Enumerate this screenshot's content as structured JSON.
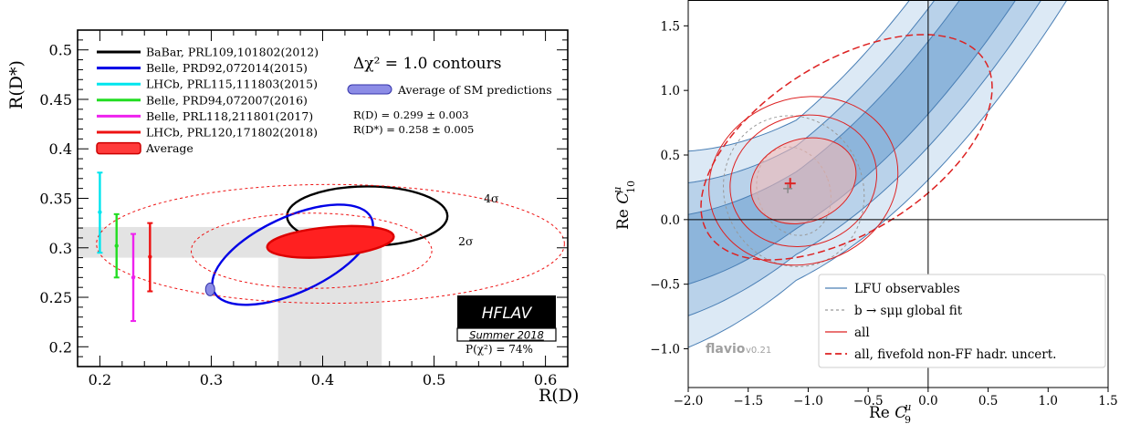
{
  "chart_data": [
    {
      "type": "scatter",
      "xlabel": "R(D)",
      "ylabel": "R(D*)",
      "xlim": [
        0.18,
        0.62
      ],
      "ylim": [
        0.18,
        0.52
      ],
      "xticks": [
        "0.2",
        "0.3",
        "0.4",
        "0.5",
        "0.6"
      ],
      "xtick_values": [
        0.2,
        0.3,
        0.4,
        0.5,
        0.6
      ],
      "yticks": [
        "0.2",
        "0.25",
        "0.3",
        "0.35",
        "0.4",
        "0.45",
        "0.5"
      ],
      "ytick_values": [
        0.2,
        0.25,
        0.3,
        0.35,
        0.4,
        0.45,
        0.5
      ],
      "legend": [
        {
          "label": "BaBar, PRL109,101802(2012)",
          "color": "#000000"
        },
        {
          "label": "Belle, PRD92,072014(2015)",
          "color": "#0000e6"
        },
        {
          "label": "LHCb, PRL115,111803(2015)",
          "color": "#00e5ee"
        },
        {
          "label": "Belle, PRD94,072007(2016)",
          "color": "#22dd22"
        },
        {
          "label": "Belle, PRL118,211801(2017)",
          "color": "#ee22ee"
        },
        {
          "label": "LHCb, PRL120,171802(2018)",
          "color": "#ee1111"
        },
        {
          "label": "Average",
          "color": "#ff3b3b"
        }
      ],
      "contour_label": "Δχ² = 1.0 contours",
      "sm_label": "Average of SM predictions",
      "sm_rd_text": "R(D) = 0.299 ± 0.003",
      "sm_rdstar_text": "R(D*) = 0.258 ± 0.005",
      "sigma_labels": [
        "4σ",
        "2σ"
      ],
      "ellipses": [
        {
          "name": "BaBar",
          "cx": 0.44,
          "cy": 0.332,
          "rx": 0.072,
          "ry": 0.03,
          "angle": 0,
          "color": "#000000"
        },
        {
          "name": "Belle 2015",
          "cx": 0.373,
          "cy": 0.293,
          "rx": 0.078,
          "ry": 0.038,
          "angle": -25,
          "color": "#0000e6"
        },
        {
          "name": "Average",
          "cx": 0.407,
          "cy": 0.306,
          "rx": 0.057,
          "ry": 0.015,
          "angle": -5,
          "color": "#ff2020",
          "filled": true
        },
        {
          "name": "2σ",
          "cx": 0.39,
          "cy": 0.297,
          "rx": 0.108,
          "ry": 0.038,
          "angle": 0,
          "color": "#ee1111",
          "dashed": true
        },
        {
          "name": "4σ",
          "cx": 0.407,
          "cy": 0.304,
          "rx": 0.21,
          "ry": 0.06,
          "angle": 0,
          "color": "#ee1111",
          "dashed": true
        }
      ],
      "error_bars": [
        {
          "name": "LHCb 2015",
          "x": 0.2,
          "y": 0.336,
          "lo": 0.295,
          "hi": 0.376,
          "color": "#00e5ee"
        },
        {
          "name": "Belle 2016",
          "x": 0.215,
          "y": 0.302,
          "lo": 0.27,
          "hi": 0.334,
          "color": "#22dd22"
        },
        {
          "name": "Belle 2017",
          "x": 0.23,
          "y": 0.27,
          "lo": 0.226,
          "hi": 0.314,
          "color": "#ee22ee"
        },
        {
          "name": "LHCb 2018",
          "x": 0.245,
          "y": 0.291,
          "lo": 0.256,
          "hi": 0.325,
          "color": "#ee1111"
        }
      ],
      "sm_point": {
        "x": 0.299,
        "y": 0.258
      },
      "bands": [
        {
          "axis": "y",
          "lo": 0.29,
          "hi": 0.321,
          "from": 0.18,
          "to": 0.453
        },
        {
          "axis": "x",
          "lo": 0.36,
          "hi": 0.453,
          "from": 0.18,
          "to": 0.321
        }
      ],
      "hflav_title": "HFLAV",
      "hflav_subtitle": "Summer 2018",
      "pchi2": "P(χ²) = 74%"
    },
    {
      "type": "area",
      "xlabel": "Re C₉^μ",
      "ylabel": "Re C₁₀^μ",
      "xlim": [
        -2.0,
        1.5
      ],
      "ylim": [
        -1.3,
        1.7
      ],
      "xticks": [
        "−2.0",
        "−1.5",
        "−1.0",
        "−0.5",
        "0.0",
        "0.5",
        "1.0",
        "1.5"
      ],
      "xtick_values": [
        -2.0,
        -1.5,
        -1.0,
        -0.5,
        0.0,
        0.5,
        1.0,
        1.5
      ],
      "yticks": [
        "−1.0",
        "−0.5",
        "0.0",
        "0.5",
        "1.0",
        "1.5"
      ],
      "ytick_values": [
        -1.0,
        -0.5,
        0.0,
        0.5,
        1.0,
        1.5
      ],
      "legend": [
        {
          "label": "LFU observables",
          "style": "solid",
          "color": "#4a7fb5"
        },
        {
          "label": "b → sμμ global fit",
          "style": "dashed",
          "color": "#999999"
        },
        {
          "label": "all",
          "style": "solid",
          "color": "#dd2222"
        },
        {
          "label": "all, fivefold non-FF hadr. uncert.",
          "style": "dashed",
          "color": "#dd2222"
        }
      ],
      "watermark": "flavio",
      "watermark_version": "v0.21",
      "best_fit": {
        "x": -1.15,
        "y": 0.28
      },
      "global_fit_point": {
        "x": -1.17,
        "y": 0.24
      },
      "bands": [
        {
          "name": "LFU 3σ",
          "center": 0.15,
          "width": 0.62,
          "color": "#dce9f5"
        },
        {
          "name": "LFU 2σ",
          "center": 0.15,
          "width": 0.42,
          "color": "#b9d2ea"
        },
        {
          "name": "LFU 1σ",
          "center": 0.15,
          "width": 0.22,
          "color": "#8db5db"
        }
      ],
      "contours": [
        {
          "name": "global 1σ",
          "cx": -1.12,
          "cy": 0.22,
          "rx": 0.3,
          "ry": 0.35,
          "angle": 20,
          "color": "#999999",
          "dashed": true
        },
        {
          "name": "global 2σ",
          "cx": -1.12,
          "cy": 0.22,
          "rx": 0.58,
          "ry": 0.59,
          "angle": 20,
          "color": "#999999",
          "dashed": true
        },
        {
          "name": "all 1σ",
          "cx": -1.04,
          "cy": 0.3,
          "rx": 0.45,
          "ry": 0.32,
          "angle": 20,
          "color": "#dd2222",
          "fill": "#fbb8b0"
        },
        {
          "name": "all 2σ",
          "cx": -1.04,
          "cy": 0.3,
          "rx": 0.62,
          "ry": 0.5,
          "angle": 20,
          "color": "#dd2222"
        },
        {
          "name": "all 3σ",
          "cx": -1.04,
          "cy": 0.3,
          "rx": 0.8,
          "ry": 0.64,
          "angle": 20,
          "color": "#dd2222"
        },
        {
          "name": "fivefold",
          "cx": -0.68,
          "cy": 0.56,
          "rx": 1.36,
          "ry": 0.66,
          "angle": 32,
          "color": "#dd2222",
          "dashed": true
        }
      ]
    }
  ]
}
